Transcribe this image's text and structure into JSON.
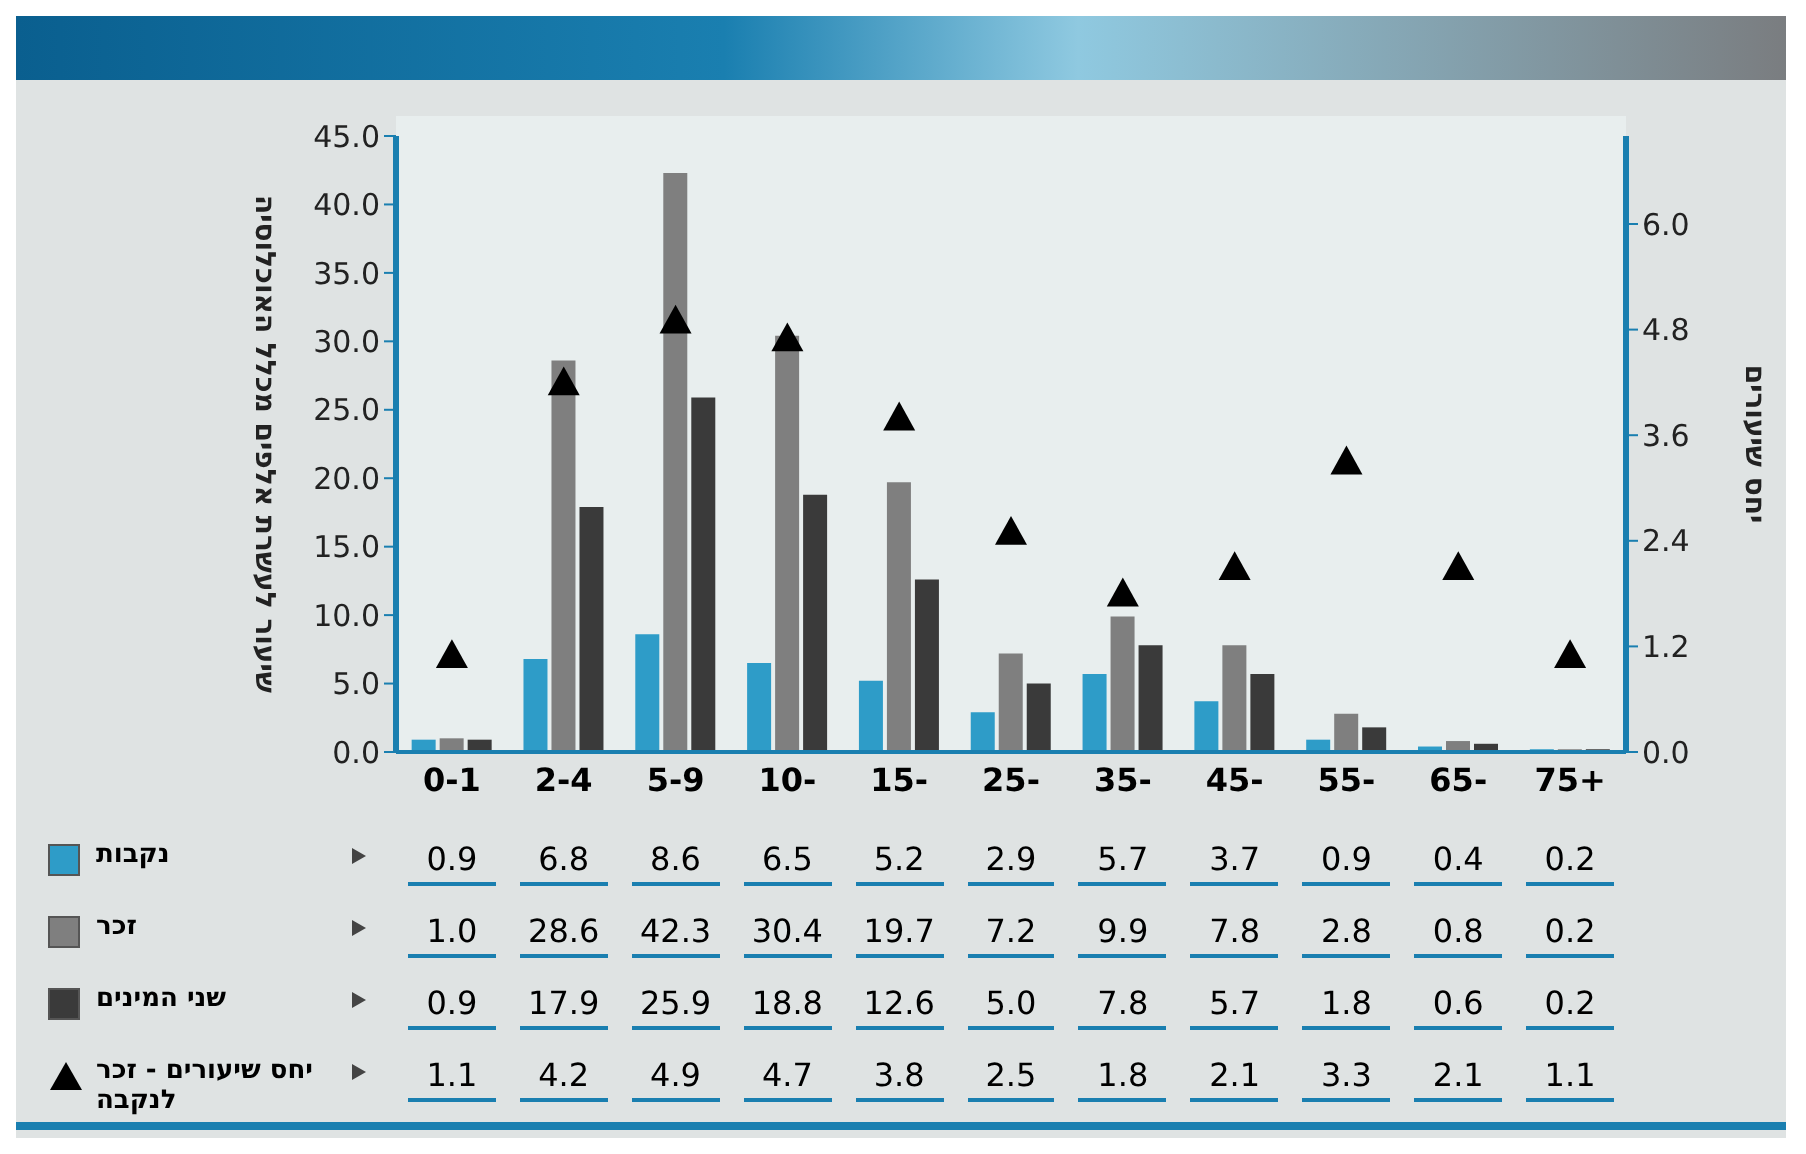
{
  "chart_data": {
    "type": "bar",
    "ylabel": "שיעור לעשרת אלפים מכלל האוכלוסיה",
    "y2label": "יחס שיעורים",
    "categories": [
      "0-1",
      "2-4",
      "5-9",
      "10-",
      "15-",
      "25-",
      "35-",
      "45-",
      "55-",
      "65-",
      "75+"
    ],
    "series": [
      {
        "name": "נקבות",
        "color": "#2e9cc8",
        "values": [
          0.9,
          6.8,
          8.6,
          6.5,
          5.2,
          2.9,
          5.7,
          3.7,
          0.9,
          0.4,
          0.2
        ],
        "value_labels": [
          "0.9",
          "6.8",
          "8.6",
          "6.5",
          "5.2",
          "2.9",
          "5.7",
          "3.7",
          "0.9",
          "0.4",
          "0.2"
        ]
      },
      {
        "name": "זכר",
        "color": "#7f7f7f",
        "values": [
          1.0,
          28.6,
          42.3,
          30.4,
          19.7,
          7.2,
          9.9,
          7.8,
          2.8,
          0.8,
          0.2
        ],
        "value_labels": [
          "1.0",
          "28.6",
          "42.3",
          "30.4",
          "19.7",
          "7.2",
          "9.9",
          "7.8",
          "2.8",
          "0.8",
          "0.2"
        ]
      },
      {
        "name": "שני המינים",
        "color": "#3a3a3a",
        "values": [
          0.9,
          17.9,
          25.9,
          18.8,
          12.6,
          5.0,
          7.8,
          5.7,
          1.8,
          0.6,
          0.2
        ],
        "value_labels": [
          "0.9",
          "17.9",
          "25.9",
          "18.8",
          "12.6",
          "5.0",
          "7.8",
          "5.7",
          "1.8",
          "0.6",
          "0.2"
        ]
      },
      {
        "name": "יחס שיעורים - זכר לנקבה",
        "type": "scatter",
        "axis": "y2",
        "marker": "triangle",
        "color": "#000000",
        "values": [
          1.1,
          4.2,
          4.9,
          4.7,
          3.8,
          2.5,
          1.8,
          2.1,
          3.3,
          2.1,
          1.1
        ],
        "value_labels": [
          "1.1",
          "4.2",
          "4.9",
          "4.7",
          "3.8",
          "2.5",
          "1.8",
          "2.1",
          "3.3",
          "2.1",
          "1.1"
        ]
      }
    ],
    "ylim": [
      0,
      45
    ],
    "yticks": [
      {
        "value": 0,
        "label": "0.0"
      },
      {
        "value": 5,
        "label": "5.0"
      },
      {
        "value": 10,
        "label": "10.0"
      },
      {
        "value": 15,
        "label": "15.0"
      },
      {
        "value": 20,
        "label": "20.0"
      },
      {
        "value": 25,
        "label": "25.0"
      },
      {
        "value": 30,
        "label": "30.0"
      },
      {
        "value": 35,
        "label": "35.0"
      },
      {
        "value": 40,
        "label": "40.0"
      },
      {
        "value": 45,
        "label": "45.0"
      }
    ],
    "y2lim": [
      0,
      7
    ],
    "y2ticks": [
      {
        "value": 0,
        "label": "0.0"
      },
      {
        "value": 1.2,
        "label": "1.2"
      },
      {
        "value": 2.4,
        "label": "2.4"
      },
      {
        "value": 3.6,
        "label": "3.6"
      },
      {
        "value": 4.8,
        "label": "4.8"
      },
      {
        "value": 6,
        "label": "6.0"
      }
    ],
    "legend": "bottom",
    "grid": false
  }
}
